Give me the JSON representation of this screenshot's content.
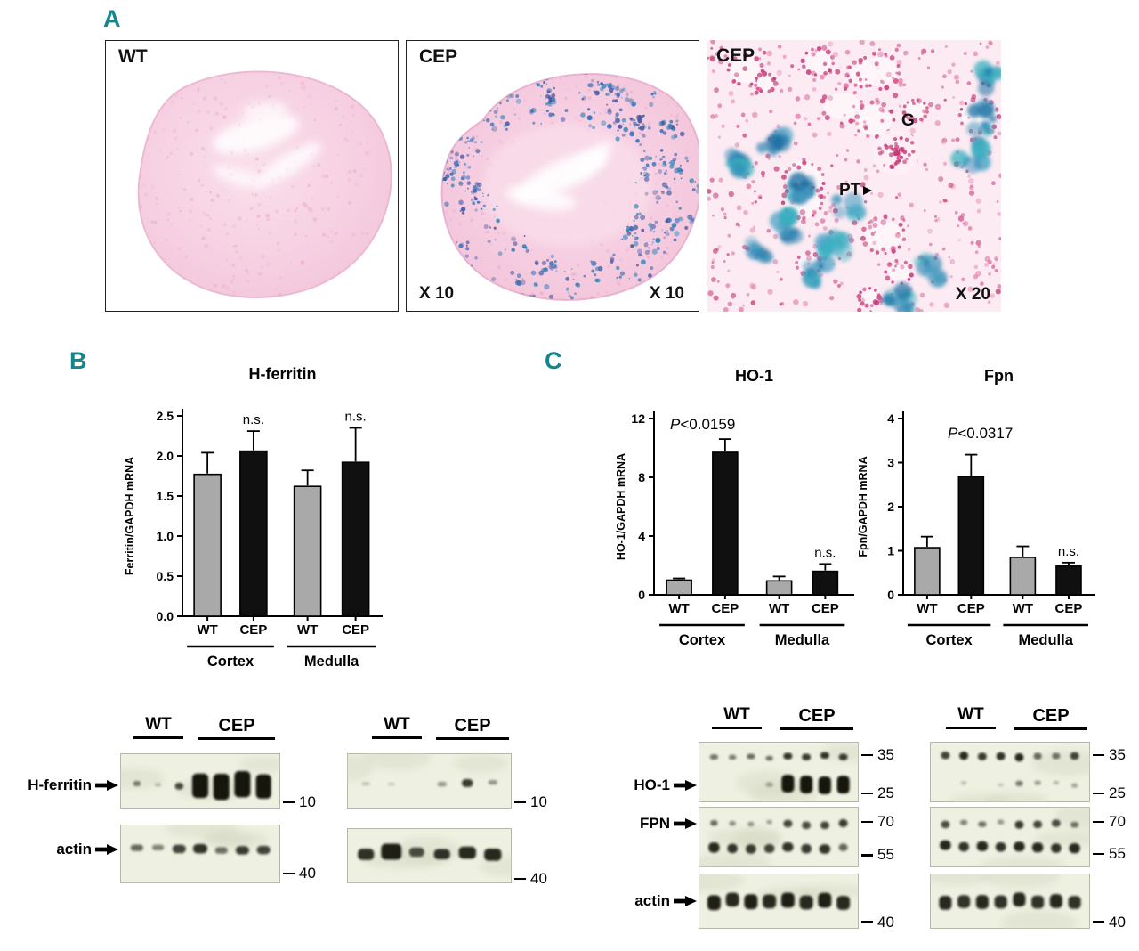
{
  "figure": {
    "accent_color": "#11868c",
    "background": "#ffffff"
  },
  "panel_a": {
    "label": "A",
    "images": [
      {
        "corner_label": "WT"
      },
      {
        "corner_label": "CEP",
        "mag_left": "X 10",
        "mag_right": "X 10"
      },
      {
        "corner_label": "CEP",
        "glomerulus_label": "G",
        "proximal_tubule_label": "PT",
        "mag_right": "X 20"
      }
    ]
  },
  "panel_b": {
    "label": "B"
  },
  "panel_c": {
    "label": "C"
  },
  "chart_data": [
    {
      "id": "h-ferritin",
      "type": "bar",
      "title": "H-ferritin",
      "ylabel": "Ferritin/GAPDH mRNA",
      "ylim": [
        0,
        2.5
      ],
      "yticks": [
        0,
        0.5,
        1,
        1.5,
        2,
        2.5
      ],
      "ytick_labels": [
        "0.0",
        "0.5",
        "1.0",
        "1.5",
        "2.0",
        "2.5"
      ],
      "categories": [
        "WT",
        "CEP",
        "WT",
        "CEP"
      ],
      "values": [
        1.77,
        2.06,
        1.62,
        1.92
      ],
      "errors": [
        0.27,
        0.25,
        0.2,
        0.43
      ],
      "bar_colors": [
        "#a9a9a9",
        "#101010",
        "#a9a9a9",
        "#101010"
      ],
      "annotations": [
        {
          "bar": 1,
          "text": "n.s."
        },
        {
          "bar": 3,
          "text": "n.s."
        }
      ],
      "groups": [
        {
          "label": "Cortex",
          "bars": [
            0,
            1
          ]
        },
        {
          "label": "Medulla",
          "bars": [
            2,
            3
          ]
        }
      ],
      "grid": false
    },
    {
      "id": "ho-1",
      "type": "bar",
      "title": "HO-1",
      "ylabel": "HO-1/GAPDH mRNA",
      "ylim": [
        0,
        12
      ],
      "yticks": [
        0,
        4,
        8,
        12
      ],
      "ytick_labels": [
        "0",
        "4",
        "8",
        "12"
      ],
      "categories": [
        "WT",
        "CEP",
        "WT",
        "CEP"
      ],
      "values": [
        1.0,
        9.7,
        0.95,
        1.6
      ],
      "errors": [
        0.12,
        0.9,
        0.3,
        0.5
      ],
      "bar_colors": [
        "#a9a9a9",
        "#101010",
        "#a9a9a9",
        "#101010"
      ],
      "p_label": "P<0.0159",
      "annotations": [
        {
          "bar": 3,
          "text": "n.s."
        }
      ],
      "groups": [
        {
          "label": "Cortex",
          "bars": [
            0,
            1
          ]
        },
        {
          "label": "Medulla",
          "bars": [
            2,
            3
          ]
        }
      ],
      "grid": false
    },
    {
      "id": "fpn",
      "type": "bar",
      "title": "Fpn",
      "ylabel": "Fpn/GAPDH mRNA",
      "ylim": [
        0,
        4
      ],
      "yticks": [
        0,
        1,
        2,
        3,
        4
      ],
      "ytick_labels": [
        "0",
        "1",
        "2",
        "3",
        "4"
      ],
      "categories": [
        "WT",
        "CEP",
        "WT",
        "CEP"
      ],
      "values": [
        1.07,
        2.68,
        0.85,
        0.65
      ],
      "errors": [
        0.25,
        0.5,
        0.25,
        0.08
      ],
      "bar_colors": [
        "#a9a9a9",
        "#101010",
        "#a9a9a9",
        "#101010"
      ],
      "p_label": "P<0.0317",
      "annotations": [
        {
          "bar": 3,
          "text": "n.s."
        }
      ],
      "groups": [
        {
          "label": "Cortex",
          "bars": [
            0,
            1
          ]
        },
        {
          "label": "Medulla",
          "bars": [
            2,
            3
          ]
        }
      ],
      "grid": false
    }
  ],
  "western_blots": {
    "panel_b_left": {
      "headers": [
        "WT",
        "CEP"
      ],
      "blots": [
        {
          "row_label": "H-ferritin",
          "lanes": 7,
          "markers": [
            {
              "label": "10",
              "y": 0.88
            }
          ],
          "rows": [
            {
              "y": 0.58,
              "bands": [
                [
                  0.45,
                  0.45,
                  0.55
                ],
                [
                  0.15,
                  0.35,
                  0.35
                ],
                [
                  0.7,
                  0.5,
                  0.75
                ],
                [
                  1,
                  0.95,
                  2.6
                ],
                [
                  1,
                  0.95,
                  2.8
                ],
                [
                  1,
                  0.95,
                  2.8
                ],
                [
                  1,
                  0.9,
                  2.6
                ]
              ]
            }
          ]
        },
        {
          "row_label": "actin",
          "lanes": 7,
          "markers": [
            {
              "label": "40",
              "y": 0.83
            }
          ],
          "rows": [
            {
              "y": 0.42,
              "bands": [
                [
                  0.55,
                  0.75,
                  0.7
                ],
                [
                  0.4,
                  0.7,
                  0.6
                ],
                [
                  0.75,
                  0.8,
                  0.9
                ],
                [
                  0.85,
                  0.85,
                  1.0
                ],
                [
                  0.5,
                  0.75,
                  0.7
                ],
                [
                  0.8,
                  0.8,
                  0.9
                ],
                [
                  0.75,
                  0.8,
                  0.9
                ]
              ]
            }
          ]
        }
      ]
    },
    "panel_b_right": {
      "headers": [
        "WT",
        "CEP"
      ],
      "blots": [
        {
          "lanes": 6,
          "markers": [
            {
              "label": "10",
              "y": 0.88
            }
          ],
          "rows": [
            {
              "y": 0.55,
              "bands": [
                [
                  0.08,
                  0.4,
                  0.35
                ],
                [
                  0.05,
                  0.35,
                  0.3
                ],
                [
                  0,
                  0,
                  0
                ],
                [
                  0.3,
                  0.45,
                  0.5
                ],
                [
                  0.8,
                  0.55,
                  0.85
                ],
                [
                  0.3,
                  0.45,
                  0.5
                ]
              ]
            }
          ]
        },
        {
          "lanes": 6,
          "markers": [
            {
              "label": "40",
              "y": 0.92
            }
          ],
          "rows": [
            {
              "y": 0.45,
              "bands": [
                [
                  0.85,
                  0.8,
                  1.2
                ],
                [
                  0.95,
                  1.0,
                  1.7
                ],
                [
                  0.7,
                  0.75,
                  1.0
                ],
                [
                  0.85,
                  0.8,
                  1.1
                ],
                [
                  0.9,
                  0.85,
                  1.3
                ],
                [
                  0.9,
                  0.85,
                  1.3
                ]
              ]
            }
          ]
        }
      ]
    },
    "panel_c_left": {
      "headers": [
        "WT",
        "CEP"
      ],
      "blots": [
        {
          "row_label": "HO-1",
          "lanes": 8,
          "markers": [
            {
              "label": "35",
              "y": 0.22
            },
            {
              "label": "25",
              "y": 0.85
            }
          ],
          "rows": [
            {
              "y": 0.25,
              "bands": [
                [
                  0.5,
                  0.55,
                  0.55
                ],
                [
                  0.45,
                  0.5,
                  0.5
                ],
                [
                  0.55,
                  0.55,
                  0.55
                ],
                [
                  0.5,
                  0.5,
                  0.5
                ],
                [
                  0.85,
                  0.6,
                  0.7
                ],
                [
                  0.8,
                  0.6,
                  0.7
                ],
                [
                  0.85,
                  0.6,
                  0.7
                ],
                [
                  0.8,
                  0.6,
                  0.7
                ]
              ]
            },
            {
              "y": 0.72,
              "bands": [
                [
                  0,
                  0,
                  0
                ],
                [
                  0,
                  0,
                  0
                ],
                [
                  0,
                  0,
                  0
                ],
                [
                  0.2,
                  0.5,
                  0.5
                ],
                [
                  1,
                  0.85,
                  1.9
                ],
                [
                  1,
                  0.85,
                  1.9
                ],
                [
                  1,
                  0.85,
                  1.9
                ],
                [
                  1,
                  0.85,
                  1.9
                ]
              ]
            }
          ]
        },
        {
          "row_label": "FPN",
          "lanes": 8,
          "markers": [
            {
              "label": "70",
              "y": 0.25
            },
            {
              "label": "55",
              "y": 0.8
            }
          ],
          "rows": [
            {
              "y": 0.28,
              "bands": [
                [
                  0.55,
                  0.5,
                  0.6
                ],
                [
                  0.35,
                  0.45,
                  0.5
                ],
                [
                  0.3,
                  0.45,
                  0.5
                ],
                [
                  0.25,
                  0.4,
                  0.45
                ],
                [
                  0.75,
                  0.6,
                  0.8
                ],
                [
                  0.7,
                  0.6,
                  0.8
                ],
                [
                  0.75,
                  0.6,
                  0.8
                ],
                [
                  0.8,
                  0.6,
                  0.85
                ]
              ]
            },
            {
              "y": 0.68,
              "bands": [
                [
                  0.9,
                  0.75,
                  1.1
                ],
                [
                  0.85,
                  0.7,
                  1.0
                ],
                [
                  0.8,
                  0.7,
                  1.0
                ],
                [
                  0.75,
                  0.7,
                  0.95
                ],
                [
                  0.85,
                  0.75,
                  1.0
                ],
                [
                  0.8,
                  0.7,
                  1.0
                ],
                [
                  0.85,
                  0.75,
                  1.0
                ],
                [
                  0.55,
                  0.6,
                  0.8
                ]
              ]
            }
          ]
        },
        {
          "row_label": "actin",
          "lanes": 8,
          "markers": [
            {
              "label": "40",
              "y": 0.88
            }
          ],
          "rows": [
            {
              "y": 0.5,
              "bands": [
                [
                  0.95,
                  0.9,
                  1.6
                ],
                [
                  0.9,
                  0.9,
                  1.5
                ],
                [
                  0.95,
                  0.9,
                  1.6
                ],
                [
                  0.9,
                  0.9,
                  1.5
                ],
                [
                  0.95,
                  0.9,
                  1.6
                ],
                [
                  0.9,
                  0.9,
                  1.5
                ],
                [
                  0.95,
                  0.9,
                  1.6
                ],
                [
                  0.9,
                  0.9,
                  1.5
                ]
              ]
            }
          ]
        }
      ]
    },
    "panel_c_right": {
      "headers": [
        "WT",
        "CEP"
      ],
      "blots": [
        {
          "lanes": 8,
          "markers": [
            {
              "label": "35",
              "y": 0.22
            },
            {
              "label": "25",
              "y": 0.85
            }
          ],
          "rows": [
            {
              "y": 0.25,
              "bands": [
                [
                  0.75,
                  0.6,
                  0.8
                ],
                [
                  0.9,
                  0.6,
                  0.9
                ],
                [
                  0.8,
                  0.6,
                  0.8
                ],
                [
                  0.85,
                  0.6,
                  0.85
                ],
                [
                  0.9,
                  0.6,
                  0.9
                ],
                [
                  0.55,
                  0.55,
                  0.7
                ],
                [
                  0.5,
                  0.55,
                  0.65
                ],
                [
                  0.75,
                  0.6,
                  0.8
                ]
              ]
            },
            {
              "y": 0.7,
              "bands": [
                [
                  0,
                  0,
                  0
                ],
                [
                  0.08,
                  0.4,
                  0.4
                ],
                [
                  0,
                  0,
                  0
                ],
                [
                  0.05,
                  0.4,
                  0.35
                ],
                [
                  0.45,
                  0.5,
                  0.6
                ],
                [
                  0.25,
                  0.45,
                  0.5
                ],
                [
                  0.12,
                  0.4,
                  0.4
                ],
                [
                  0.2,
                  0.45,
                  0.5
                ]
              ]
            }
          ]
        },
        {
          "lanes": 8,
          "markers": [
            {
              "label": "70",
              "y": 0.25
            },
            {
              "label": "55",
              "y": 0.78
            }
          ],
          "rows": [
            {
              "y": 0.28,
              "bands": [
                [
                  0.7,
                  0.6,
                  0.8
                ],
                [
                  0.4,
                  0.5,
                  0.55
                ],
                [
                  0.5,
                  0.55,
                  0.6
                ],
                [
                  0.3,
                  0.45,
                  0.5
                ],
                [
                  0.8,
                  0.6,
                  0.85
                ],
                [
                  0.75,
                  0.6,
                  0.8
                ],
                [
                  0.7,
                  0.6,
                  0.8
                ],
                [
                  0.5,
                  0.55,
                  0.6
                ]
              ]
            },
            {
              "y": 0.66,
              "bands": [
                [
                  0.9,
                  0.75,
                  1.05
                ],
                [
                  0.85,
                  0.7,
                  1.0
                ],
                [
                  0.9,
                  0.75,
                  1.05
                ],
                [
                  0.85,
                  0.7,
                  1.0
                ],
                [
                  0.9,
                  0.75,
                  1.05
                ],
                [
                  0.9,
                  0.75,
                  1.05
                ],
                [
                  0.85,
                  0.7,
                  1.0
                ],
                [
                  0.9,
                  0.75,
                  1.05
                ]
              ]
            }
          ]
        },
        {
          "lanes": 8,
          "markers": [
            {
              "label": "40",
              "y": 0.88
            }
          ],
          "rows": [
            {
              "y": 0.5,
              "bands": [
                [
                  0.9,
                  0.85,
                  1.5
                ],
                [
                  0.85,
                  0.85,
                  1.4
                ],
                [
                  0.9,
                  0.85,
                  1.5
                ],
                [
                  0.85,
                  0.85,
                  1.4
                ],
                [
                  0.9,
                  0.85,
                  1.5
                ],
                [
                  0.85,
                  0.85,
                  1.4
                ],
                [
                  0.9,
                  0.85,
                  1.5
                ],
                [
                  0.85,
                  0.85,
                  1.4
                ]
              ]
            }
          ]
        }
      ]
    }
  }
}
